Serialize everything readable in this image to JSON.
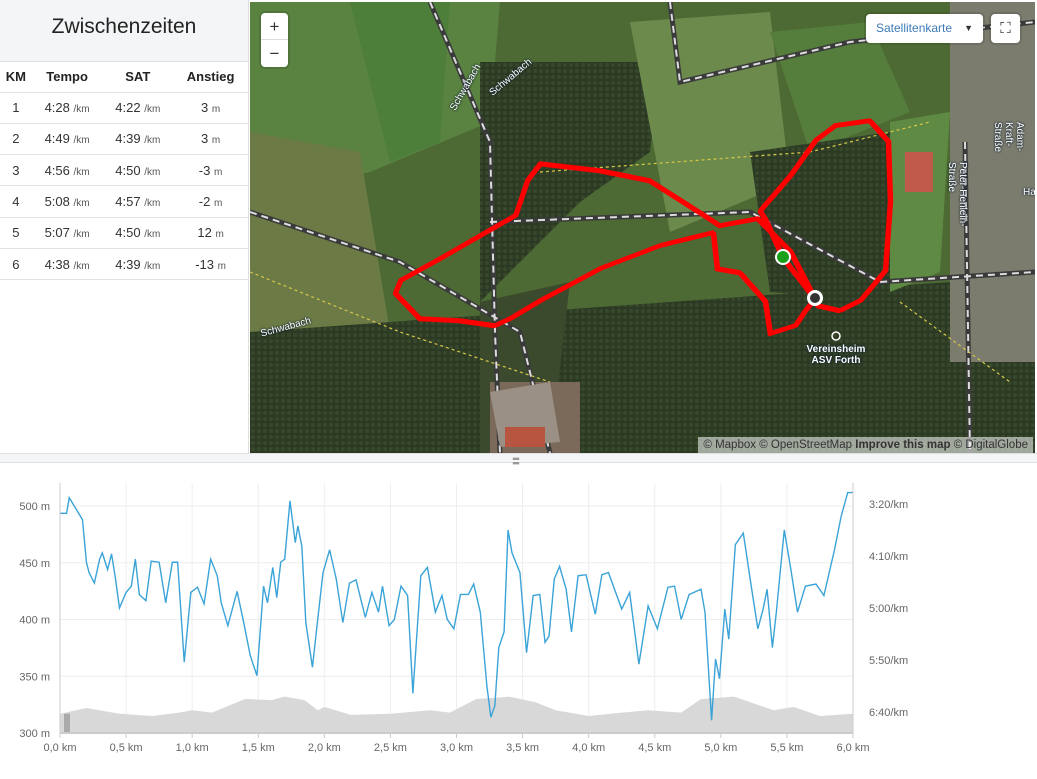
{
  "splits": {
    "title": "Zwischenzeiten",
    "columns": [
      "KM",
      "Tempo",
      "SAT",
      "Anstieg"
    ],
    "unit_pace": "/km",
    "unit_elev": "m",
    "rows": [
      {
        "km": "1",
        "tempo": "4:28",
        "sat": "4:22",
        "anstieg": "3"
      },
      {
        "km": "2",
        "tempo": "4:49",
        "sat": "4:39",
        "anstieg": "3"
      },
      {
        "km": "3",
        "tempo": "4:56",
        "sat": "4:50",
        "anstieg": "-3"
      },
      {
        "km": "4",
        "tempo": "5:08",
        "sat": "4:57",
        "anstieg": "-2"
      },
      {
        "km": "5",
        "tempo": "5:07",
        "sat": "4:50",
        "anstieg": "12"
      },
      {
        "km": "6",
        "tempo": "4:38",
        "sat": "4:39",
        "anstieg": "-13"
      }
    ]
  },
  "map": {
    "zoom_in": "+",
    "zoom_out": "−",
    "layer_select": "Satellitenkarte",
    "labels": {
      "schwabach": "Schwabach",
      "adam": "Adam-Kraft-Straße",
      "peter": "Peter-Henlein-Straße",
      "ha": "Ha",
      "poi": "Vereinsheim",
      "poi2": "ASV Forth"
    },
    "attribution": {
      "mapbox": "© Mapbox",
      "osm": "© OpenStreetMap",
      "improve": "Improve this map",
      "dg": "© DigitalGlobe"
    },
    "route_color": "#ff0000",
    "start_color": "#1aa01a"
  },
  "chart_data": {
    "type": "line",
    "x_unit": "km",
    "xlim": [
      0,
      6
    ],
    "x_ticks": [
      "0,0 km",
      "0,5 km",
      "1,0 km",
      "1,5 km",
      "2,0 km",
      "2,5 km",
      "3,0 km",
      "3,5 km",
      "4,0 km",
      "4,5 km",
      "5,0 km",
      "5,5 km",
      "6,0 km"
    ],
    "y_left_ticks": [
      "300 m",
      "350 m",
      "400 m",
      "450 m",
      "500 m"
    ],
    "y_left_lim": [
      300,
      520
    ],
    "y_right_ticks": [
      "3:20/km",
      "4:10/km",
      "5:00/km",
      "5:50/km",
      "6:40/km"
    ],
    "grid": true,
    "pace_color": "#3aa3d8",
    "elevation_color": "#d8d8d8",
    "pace": [
      [
        0,
        "3:29"
      ],
      [
        0.05,
        "3:29"
      ],
      [
        0.07,
        "3:14"
      ],
      [
        0.17,
        "3:35"
      ],
      [
        0.2,
        "4:16"
      ],
      [
        0.22,
        "4:26"
      ],
      [
        0.26,
        "4:36"
      ],
      [
        0.3,
        "4:13"
      ],
      [
        0.32,
        "4:07"
      ],
      [
        0.36,
        "4:23"
      ],
      [
        0.39,
        "4:08"
      ],
      [
        0.42,
        "4:32"
      ],
      [
        0.45,
        "5:00"
      ],
      [
        0.5,
        "4:45"
      ],
      [
        0.54,
        "4:39"
      ],
      [
        0.57,
        "4:13"
      ],
      [
        0.6,
        "4:47"
      ],
      [
        0.65,
        "4:53"
      ],
      [
        0.69,
        "4:15"
      ],
      [
        0.75,
        "4:16"
      ],
      [
        0.8,
        "4:55"
      ],
      [
        0.85,
        "4:16"
      ],
      [
        0.89,
        "4:16"
      ],
      [
        0.94,
        "5:52"
      ],
      [
        0.99,
        "4:45"
      ],
      [
        1.04,
        "4:40"
      ],
      [
        1.09,
        "4:56"
      ],
      [
        1.14,
        "4:13"
      ],
      [
        1.19,
        "4:29"
      ],
      [
        1.22,
        "4:55"
      ],
      [
        1.27,
        "5:17"
      ],
      [
        1.34,
        "4:44"
      ],
      [
        1.39,
        "5:14"
      ],
      [
        1.44,
        "5:46"
      ],
      [
        1.49,
        "6:05"
      ],
      [
        1.54,
        "4:39"
      ],
      [
        1.57,
        "4:55"
      ],
      [
        1.61,
        "4:21"
      ],
      [
        1.64,
        "4:50"
      ],
      [
        1.67,
        "4:16"
      ],
      [
        1.7,
        "4:13"
      ],
      [
        1.74,
        "3:17"
      ],
      [
        1.78,
        "3:57"
      ],
      [
        1.8,
        "3:41"
      ],
      [
        1.83,
        "4:01"
      ],
      [
        1.86,
        "5:14"
      ],
      [
        1.91,
        "5:57"
      ],
      [
        1.95,
        "5:11"
      ],
      [
        1.99,
        "4:26"
      ],
      [
        2.04,
        "4:04"
      ],
      [
        2.09,
        "4:32"
      ],
      [
        2.14,
        "5:14"
      ],
      [
        2.19,
        "4:36"
      ],
      [
        2.24,
        "4:33"
      ],
      [
        2.31,
        "5:09"
      ],
      [
        2.36,
        "4:45"
      ],
      [
        2.41,
        "5:04"
      ],
      [
        2.44,
        "4:39"
      ],
      [
        2.49,
        "5:17"
      ],
      [
        2.53,
        "5:11"
      ],
      [
        2.58,
        "4:39"
      ],
      [
        2.63,
        "4:48"
      ],
      [
        2.67,
        "6:22"
      ],
      [
        2.73,
        "4:29"
      ],
      [
        2.78,
        "4:21"
      ],
      [
        2.84,
        "5:04"
      ],
      [
        2.89,
        "4:48"
      ],
      [
        2.93,
        "5:11"
      ],
      [
        2.98,
        "5:20"
      ],
      [
        3.03,
        "4:47"
      ],
      [
        3.09,
        "4:47"
      ],
      [
        3.13,
        "4:37"
      ],
      [
        3.18,
        "5:04"
      ],
      [
        3.23,
        "6:15"
      ],
      [
        3.26,
        "6:45"
      ],
      [
        3.29,
        "6:34"
      ],
      [
        3.32,
        "5:38"
      ],
      [
        3.36,
        "5:23"
      ],
      [
        3.39,
        "3:45"
      ],
      [
        3.42,
        "4:07"
      ],
      [
        3.48,
        "4:26"
      ],
      [
        3.53,
        "5:43"
      ],
      [
        3.58,
        "4:48"
      ],
      [
        3.63,
        "4:47"
      ],
      [
        3.67,
        "5:33"
      ],
      [
        3.7,
        "5:27"
      ],
      [
        3.74,
        "4:32"
      ],
      [
        3.78,
        "4:20"
      ],
      [
        3.83,
        "4:42"
      ],
      [
        3.87,
        "5:23"
      ],
      [
        3.92,
        "4:29"
      ],
      [
        3.98,
        "4:28"
      ],
      [
        4.05,
        "5:06"
      ],
      [
        4.1,
        "4:28"
      ],
      [
        4.15,
        "4:26"
      ],
      [
        4.25,
        "5:01"
      ],
      [
        4.31,
        "4:45"
      ],
      [
        4.38,
        "5:54"
      ],
      [
        4.45,
        "4:58"
      ],
      [
        4.52,
        "5:20"
      ],
      [
        4.6,
        "4:40"
      ],
      [
        4.65,
        "4:39"
      ],
      [
        4.7,
        "5:11"
      ],
      [
        4.76,
        "4:47"
      ],
      [
        4.85,
        "4:42"
      ],
      [
        4.88,
        "5:04"
      ],
      [
        4.93,
        "6:48"
      ],
      [
        4.96,
        "5:49"
      ],
      [
        4.99,
        "6:08"
      ],
      [
        5.03,
        "5:01"
      ],
      [
        5.06,
        "5:30"
      ],
      [
        5.11,
        "3:59"
      ],
      [
        5.17,
        "3:48"
      ],
      [
        5.23,
        "4:39"
      ],
      [
        5.28,
        "5:20"
      ],
      [
        5.32,
        "5:01"
      ],
      [
        5.35,
        "4:42"
      ],
      [
        5.39,
        "5:38"
      ],
      [
        5.42,
        "5:04"
      ],
      [
        5.48,
        "3:45"
      ],
      [
        5.53,
        "4:23"
      ],
      [
        5.58,
        "5:04"
      ],
      [
        5.64,
        "4:39"
      ],
      [
        5.72,
        "4:37"
      ],
      [
        5.78,
        "4:48"
      ],
      [
        5.82,
        "4:26"
      ],
      [
        5.86,
        "4:04"
      ],
      [
        5.91,
        "3:32"
      ],
      [
        5.96,
        "3:09"
      ],
      [
        6.0,
        "3:09"
      ]
    ],
    "elevation": [
      [
        0,
        317
      ],
      [
        0.2,
        322
      ],
      [
        0.45,
        317
      ],
      [
        0.7,
        315
      ],
      [
        0.9,
        318
      ],
      [
        1.0,
        320
      ],
      [
        1.15,
        318
      ],
      [
        1.4,
        330
      ],
      [
        1.6,
        329
      ],
      [
        1.7,
        332
      ],
      [
        1.85,
        329
      ],
      [
        1.95,
        320
      ],
      [
        2.0,
        323
      ],
      [
        2.2,
        316
      ],
      [
        2.5,
        317
      ],
      [
        2.8,
        320
      ],
      [
        2.95,
        318
      ],
      [
        3.15,
        330
      ],
      [
        3.4,
        332
      ],
      [
        3.6,
        327
      ],
      [
        3.75,
        320
      ],
      [
        4.0,
        315
      ],
      [
        4.25,
        318
      ],
      [
        4.45,
        320
      ],
      [
        4.7,
        318
      ],
      [
        4.85,
        330
      ],
      [
        5.1,
        332
      ],
      [
        5.4,
        320
      ],
      [
        5.55,
        323
      ],
      [
        5.75,
        315
      ],
      [
        6.0,
        317
      ]
    ]
  }
}
